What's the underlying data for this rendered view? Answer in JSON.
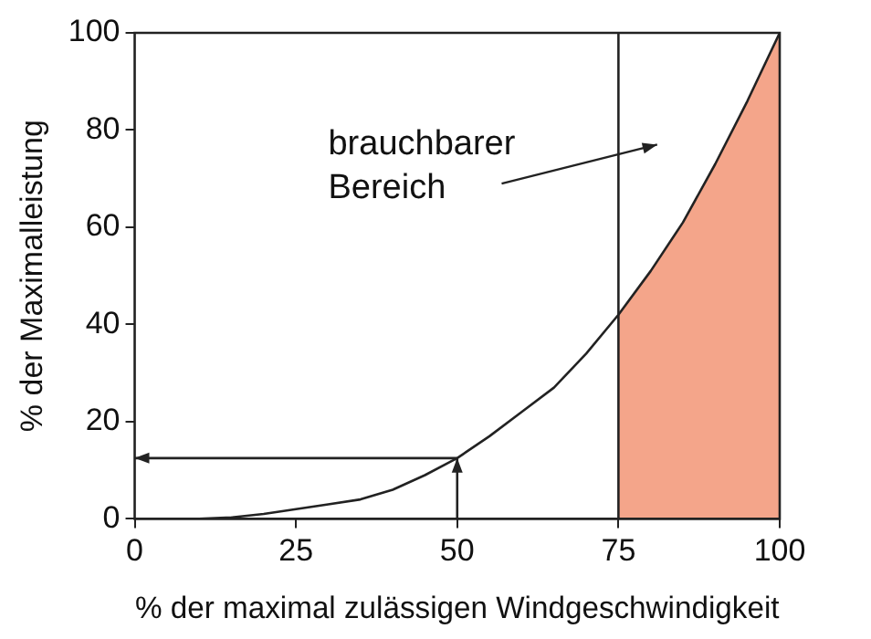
{
  "chart_data": {
    "type": "line",
    "xlabel": "% der maximal zulässigen Windgeschwindigkeit",
    "ylabel": "% der Maximalleistung",
    "x": [
      0,
      5,
      10,
      15,
      20,
      25,
      30,
      35,
      40,
      45,
      50,
      55,
      60,
      65,
      70,
      75,
      80,
      85,
      90,
      95,
      100
    ],
    "series": [
      {
        "type": "area",
        "color": "#f4a58a",
        "x": [
          75,
          80,
          85,
          90,
          95,
          100
        ],
        "values": [
          42,
          51,
          61,
          73,
          86,
          100
        ]
      },
      {
        "color": "#222222",
        "values": [
          0,
          0,
          0,
          0.3,
          1,
          2,
          3,
          4,
          6,
          9,
          12.5,
          17,
          22,
          27,
          34,
          42,
          51,
          61,
          73,
          86,
          100
        ]
      }
    ],
    "ref_lines": [
      {
        "axis": "x",
        "value": 75,
        "color": "#222222"
      }
    ],
    "annotations": [
      "brauchbarer Bereich"
    ],
    "xlim": [
      0,
      100
    ],
    "xticks": [
      0,
      25,
      50,
      75,
      100
    ],
    "ylim": [
      0,
      100
    ],
    "yticks": [
      0,
      20,
      40,
      60,
      80,
      100
    ],
    "legend": false,
    "marker": "none",
    "line_style": "solid"
  }
}
